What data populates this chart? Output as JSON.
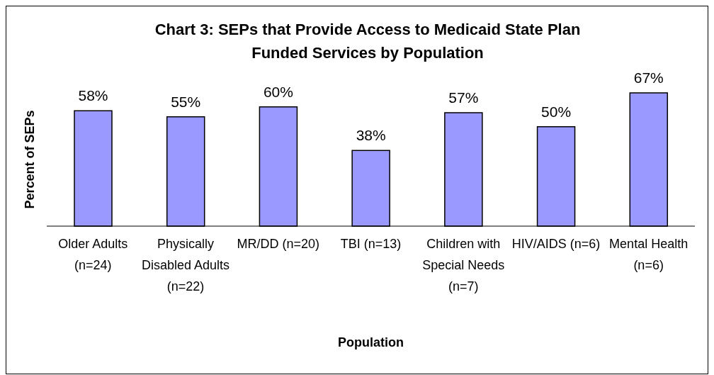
{
  "chart_data": {
    "type": "bar",
    "title": "Chart 3: SEPs that Provide Access to Medicaid State Plan Funded Services by Population",
    "xlabel": "Population",
    "ylabel": "Percent of SEPs",
    "categories": [
      "Older Adults (n=24)",
      "Physically Disabled Adults (n=22)",
      "MR/DD (n=20)",
      "TBI (n=13)",
      "Children with Special Needs (n=7)",
      "HIV/AIDS (n=6)",
      "Mental Health (n=6)"
    ],
    "values": [
      58,
      55,
      60,
      38,
      57,
      50,
      67
    ],
    "value_labels": [
      "58%",
      "55%",
      "60%",
      "38%",
      "57%",
      "50%",
      "67%"
    ],
    "color": "#9999ff",
    "grid": false,
    "legend": false
  }
}
